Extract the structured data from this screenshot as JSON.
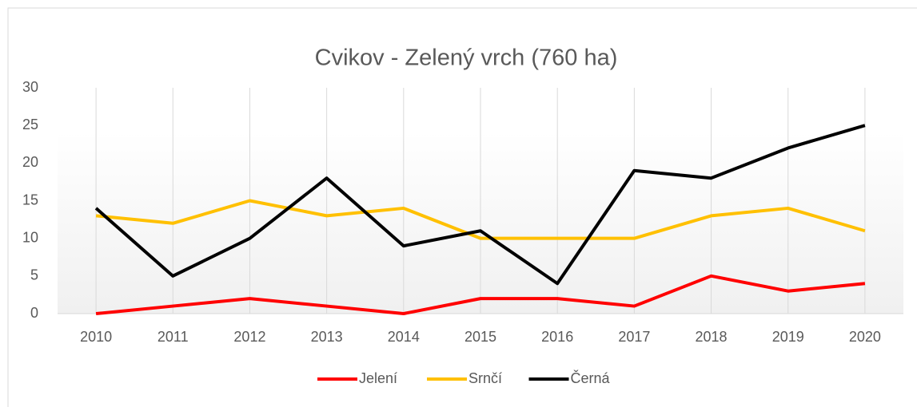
{
  "chart_data": {
    "type": "line",
    "title": "Cvikov - Zelený vrch (760 ha)",
    "categories": [
      "2010",
      "2011",
      "2012",
      "2013",
      "2014",
      "2015",
      "2016",
      "2017",
      "2018",
      "2019",
      "2020"
    ],
    "series": [
      {
        "name": "Jelení",
        "color": "#ff0000",
        "values": [
          0,
          1,
          2,
          1,
          0,
          2,
          2,
          1,
          5,
          3,
          4
        ]
      },
      {
        "name": "Srnčí",
        "color": "#ffc000",
        "values": [
          13,
          12,
          15,
          13,
          14,
          10,
          10,
          10,
          13,
          14,
          11
        ]
      },
      {
        "name": "Černá",
        "color": "#000000",
        "values": [
          14,
          5,
          10,
          18,
          9,
          11,
          4,
          19,
          18,
          22,
          25
        ]
      }
    ],
    "ylim": [
      0,
      30
    ],
    "yticks": [
      0,
      5,
      10,
      15,
      20,
      25,
      30
    ],
    "grid": "x",
    "legend": "bottom"
  }
}
